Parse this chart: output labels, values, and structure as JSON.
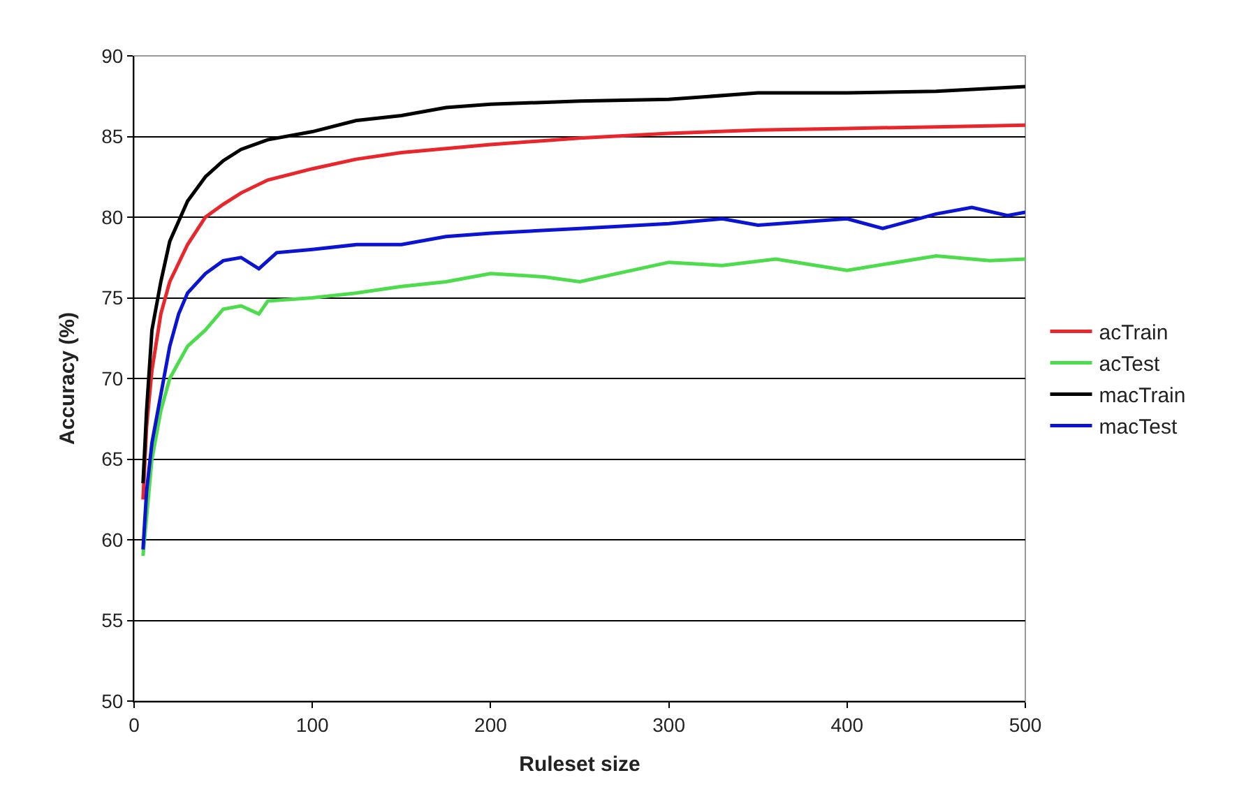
{
  "chart_data": {
    "type": "line",
    "xlabel": "Ruleset size",
    "ylabel": "Accuracy (%)",
    "xlim": [
      0,
      500
    ],
    "xticks": [
      0,
      100,
      200,
      300,
      400,
      500
    ],
    "ylim": [
      50,
      90
    ],
    "yticks": [
      50,
      55,
      60,
      65,
      70,
      75,
      80,
      85,
      90
    ],
    "grid": "y",
    "legend": "right",
    "marker": "none",
    "line_style": "solid",
    "series": [
      {
        "name": "acTrain",
        "color": "#e8262b",
        "x": [
          5,
          7,
          10,
          15,
          20,
          30,
          40,
          50,
          60,
          75,
          100,
          125,
          150,
          200,
          250,
          300,
          350,
          400,
          450,
          500
        ],
        "values": [
          62.5,
          67,
          70.5,
          74,
          76,
          78.3,
          80,
          80.8,
          81.5,
          82.3,
          83,
          83.6,
          84,
          84.5,
          84.9,
          85.2,
          85.4,
          85.5,
          85.6,
          85.7
        ]
      },
      {
        "name": "acTest",
        "color": "#4cdc4c",
        "x": [
          5,
          10,
          15,
          20,
          30,
          40,
          50,
          60,
          70,
          75,
          100,
          125,
          150,
          175,
          200,
          230,
          250,
          300,
          330,
          360,
          400,
          450,
          480,
          500
        ],
        "values": [
          59,
          65,
          68,
          70,
          72,
          73,
          74.3,
          74.5,
          74,
          74.8,
          75,
          75.3,
          75.7,
          76,
          76.5,
          76.3,
          76,
          77.2,
          77,
          77.4,
          76.7,
          77.6,
          77.3,
          77.4
        ]
      },
      {
        "name": "macTrain",
        "color": "#000000",
        "x": [
          5,
          7,
          10,
          15,
          20,
          30,
          40,
          50,
          60,
          75,
          100,
          125,
          150,
          175,
          200,
          250,
          300,
          350,
          400,
          450,
          500
        ],
        "values": [
          63.5,
          68,
          73,
          76,
          78.5,
          81,
          82.5,
          83.5,
          84.2,
          84.8,
          85.3,
          86,
          86.3,
          86.8,
          87,
          87.2,
          87.3,
          87.7,
          87.7,
          87.8,
          88.1
        ]
      },
      {
        "name": "macTest",
        "color": "#0a14d2",
        "x": [
          5,
          7,
          10,
          15,
          20,
          25,
          30,
          40,
          50,
          60,
          70,
          80,
          100,
          125,
          150,
          175,
          200,
          250,
          300,
          330,
          350,
          400,
          420,
          450,
          470,
          490,
          500
        ],
        "values": [
          59.4,
          63,
          66,
          69,
          72,
          74,
          75.3,
          76.5,
          77.3,
          77.5,
          76.8,
          77.8,
          78,
          78.3,
          78.3,
          78.8,
          79,
          79.3,
          79.6,
          79.9,
          79.5,
          79.9,
          79.3,
          80.2,
          80.6,
          80.1,
          80.3
        ]
      }
    ]
  }
}
